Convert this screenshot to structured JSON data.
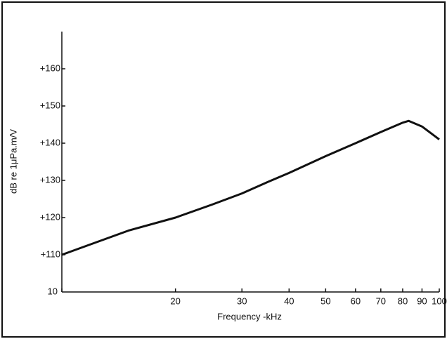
{
  "chart_data": {
    "type": "line",
    "xlabel": "Frequency -kHz",
    "ylabel": "dB re 1μPa.m/V",
    "xscale": "log",
    "xlim": [
      10,
      100
    ],
    "xticks": [
      10,
      20,
      30,
      40,
      50,
      60,
      70,
      80,
      90,
      100
    ],
    "ylim": [
      100,
      170
    ],
    "yticks": [
      {
        "value": 110,
        "label": "+110"
      },
      {
        "value": 120,
        "label": "+120"
      },
      {
        "value": 130,
        "label": "+130"
      },
      {
        "value": 140,
        "label": "+140"
      },
      {
        "value": 150,
        "label": "+150"
      },
      {
        "value": 160,
        "label": "+160"
      }
    ],
    "series": [
      {
        "color": "#111111",
        "x": [
          10,
          15,
          20,
          25,
          30,
          35,
          40,
          50,
          60,
          70,
          80,
          83,
          90,
          100
        ],
        "values": [
          110,
          116.5,
          120,
          123.5,
          126.5,
          129.5,
          132,
          136.5,
          140,
          143,
          145.5,
          146,
          144.5,
          141
        ]
      }
    ]
  }
}
